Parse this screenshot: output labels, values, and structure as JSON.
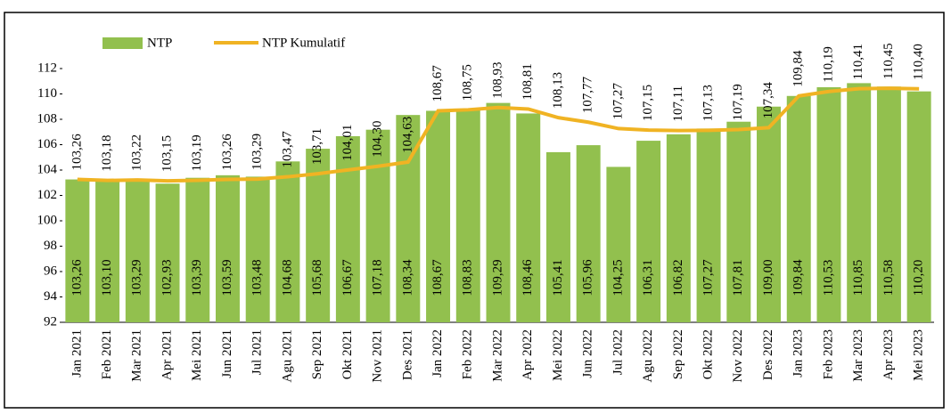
{
  "chart_data": {
    "type": "bar",
    "categories": [
      "Jan 2021",
      "Feb 2021",
      "Mar 2021",
      "Apr 2021",
      "Mei 2021",
      "Jun 2021",
      "Jul 2021",
      "Agu 2021",
      "Sep 2021",
      "Okt 2021",
      "Nov 2021",
      "Des 2021",
      "Jan 2022",
      "Feb 2022",
      "Mar 2022",
      "Apr 2022",
      "Mei 2022",
      "Jun 2022",
      "Jul 2022",
      "Agu 2022",
      "Sep 2022",
      "Okt 2022",
      "Nov 2022",
      "Des 2022",
      "Jan 2023",
      "Feb 2023",
      "Mar 2023",
      "Apr 2023",
      "Mei 2023"
    ],
    "series": [
      {
        "name": "NTP",
        "color": "#92c04e",
        "values": [
          103.26,
          103.1,
          103.29,
          102.93,
          103.39,
          103.59,
          103.48,
          104.68,
          105.68,
          106.67,
          107.18,
          108.34,
          108.67,
          108.83,
          109.29,
          108.46,
          105.41,
          105.96,
          104.25,
          106.31,
          106.82,
          107.27,
          107.81,
          109.0,
          109.84,
          110.53,
          110.85,
          110.58,
          110.2
        ],
        "value_labels": [
          "103,26",
          "103,10",
          "103,29",
          "102,93",
          "103,39",
          "103,59",
          "103,48",
          "104,68",
          "105,68",
          "106,67",
          "107,18",
          "108,34",
          "108,67",
          "108,83",
          "109,29",
          "108,46",
          "105,41",
          "105,96",
          "104,25",
          "106,31",
          "106,82",
          "107,27",
          "107,81",
          "109,00",
          "109,84",
          "110,53",
          "110,85",
          "110,58",
          "110,20"
        ]
      },
      {
        "name": "NTP Kumulatif",
        "color": "#f0b323",
        "values": [
          103.26,
          103.18,
          103.22,
          103.15,
          103.19,
          103.26,
          103.29,
          103.47,
          103.71,
          104.01,
          104.3,
          104.63,
          108.67,
          108.75,
          108.93,
          108.81,
          108.13,
          107.77,
          107.27,
          107.15,
          107.11,
          107.13,
          107.19,
          107.34,
          109.84,
          110.19,
          110.41,
          110.45,
          110.4
        ],
        "value_labels": [
          "103,26",
          "103,18",
          "103,22",
          "103,15",
          "103,19",
          "103,26",
          "103,29",
          "103,47",
          "103,71",
          "104,01",
          "104,30",
          "104,63",
          "108,67",
          "108,75",
          "108,93",
          "108,81",
          "108,13",
          "107,77",
          "107,27",
          "107,15",
          "107,11",
          "107,13",
          "107,19",
          "107,34",
          "109,84",
          "110,19",
          "110,41",
          "110,45",
          "110,40"
        ]
      }
    ],
    "ylim": [
      92,
      112
    ],
    "yticks": [
      92,
      94,
      96,
      98,
      100,
      102,
      104,
      106,
      108,
      110,
      112
    ]
  }
}
